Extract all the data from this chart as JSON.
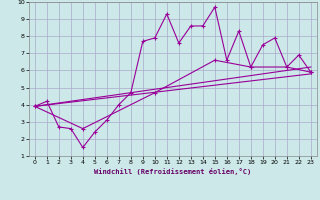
{
  "xlabel": "Windchill (Refroidissement éolien,°C)",
  "background_color": "#cce8e8",
  "grid_color": "#aaaacc",
  "line_color": "#990099",
  "xlim": [
    -0.5,
    23.5
  ],
  "ylim": [
    1,
    10
  ],
  "xticks": [
    0,
    1,
    2,
    3,
    4,
    5,
    6,
    7,
    8,
    9,
    10,
    11,
    12,
    13,
    14,
    15,
    16,
    17,
    18,
    19,
    20,
    21,
    22,
    23
  ],
  "yticks": [
    1,
    2,
    3,
    4,
    5,
    6,
    7,
    8,
    9,
    10
  ],
  "series1_x": [
    0,
    1,
    2,
    3,
    4,
    5,
    6,
    7,
    8,
    9,
    10,
    11,
    12,
    13,
    14,
    15,
    16,
    17,
    18,
    19,
    20,
    21,
    22,
    23
  ],
  "series1_y": [
    3.9,
    4.2,
    2.7,
    2.6,
    1.5,
    2.4,
    3.1,
    4.0,
    4.7,
    7.7,
    7.9,
    9.3,
    7.6,
    8.6,
    8.6,
    9.7,
    6.6,
    8.3,
    6.2,
    7.5,
    7.9,
    6.2,
    6.9,
    5.9
  ],
  "series2_x": [
    0,
    23
  ],
  "series2_y": [
    3.9,
    6.2
  ],
  "series3_x": [
    0,
    23
  ],
  "series3_y": [
    3.9,
    5.8
  ],
  "series4_x": [
    0,
    4,
    10,
    15,
    18,
    21,
    23
  ],
  "series4_y": [
    3.9,
    2.6,
    4.7,
    6.6,
    6.2,
    6.2,
    5.9
  ]
}
